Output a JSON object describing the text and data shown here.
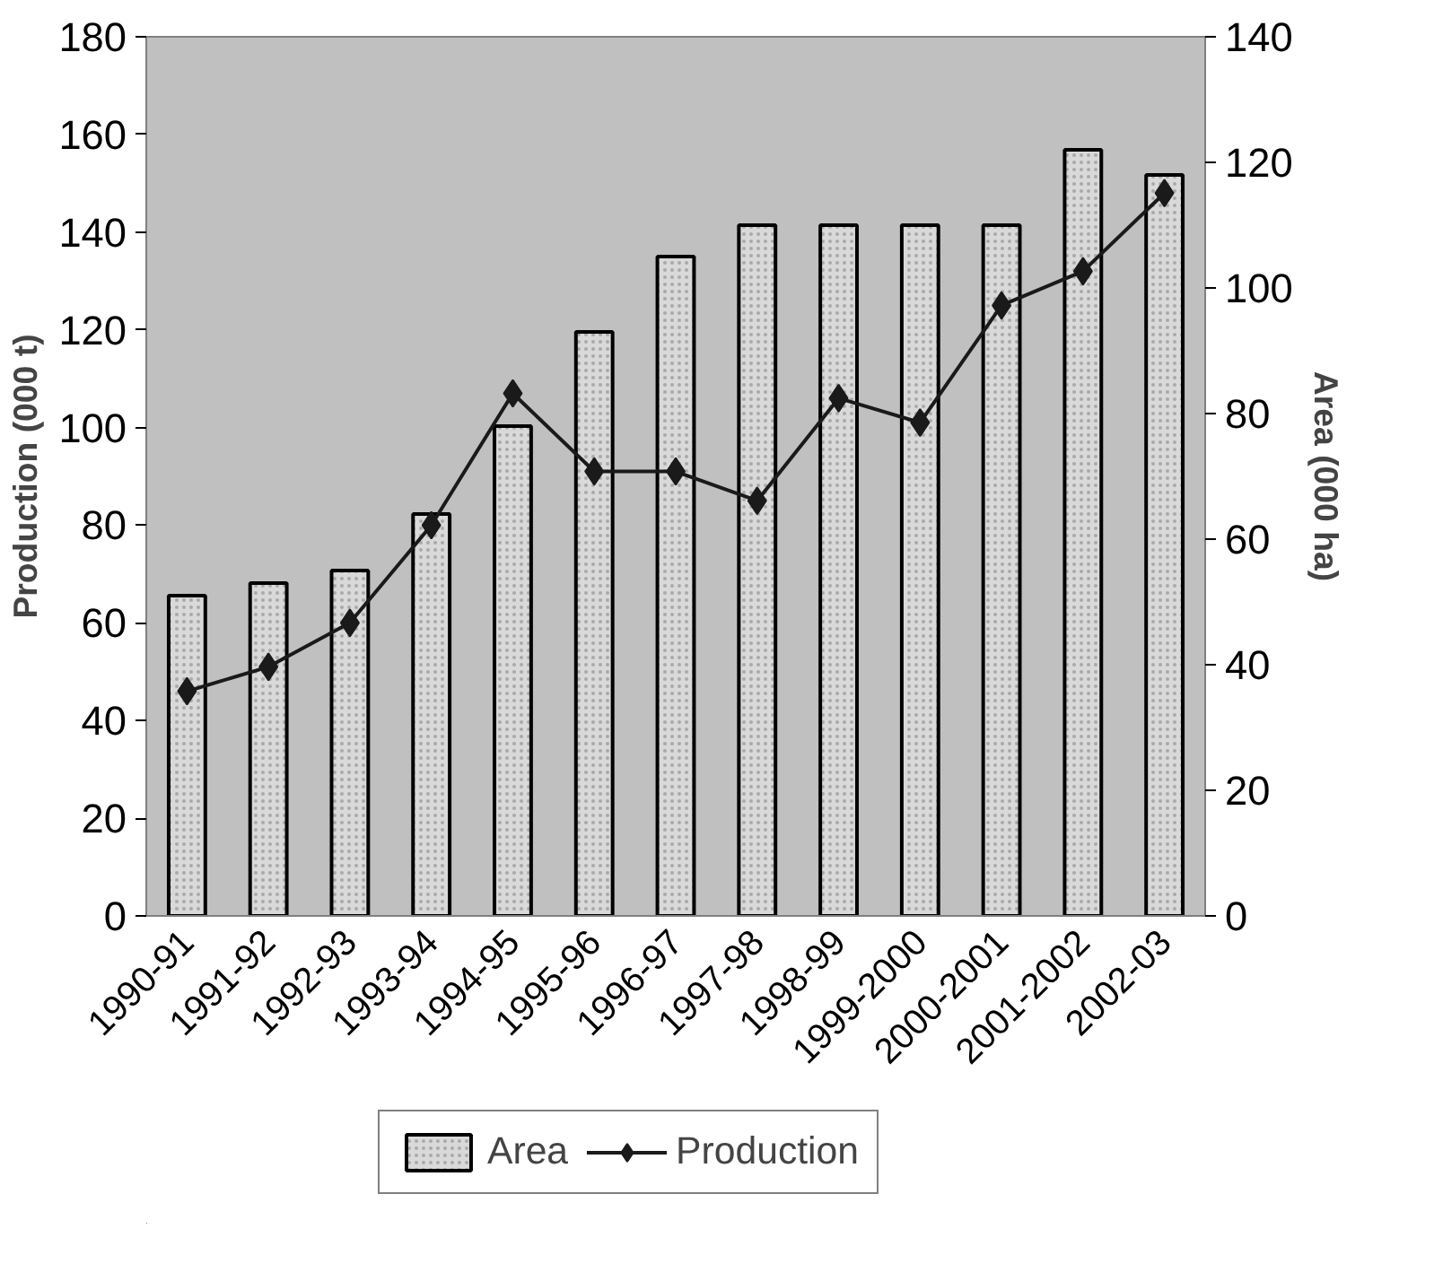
{
  "chart_data": {
    "type": "bar",
    "ylabel": "Production (000 t)",
    "y2label": "Area (000 ha)",
    "categories": [
      "1990-91",
      "1991-92",
      "1992-93",
      "1993-94",
      "1994-95",
      "1995-96",
      "1996-97",
      "1997-98",
      "1998-99",
      "1999-2000",
      "2000-2001",
      "2001-2002",
      "2002-03"
    ],
    "series": [
      {
        "name": "Area",
        "axis": "y2",
        "color": "#d9d9d9",
        "values": [
          51,
          53,
          55,
          64,
          78,
          93,
          105,
          110,
          110,
          110,
          110,
          122,
          118
        ]
      },
      {
        "name": "Production",
        "type": "line",
        "color": "#1a1a1a",
        "marker": "diamond",
        "values": [
          46,
          51,
          60,
          80,
          107,
          91,
          91,
          85,
          106,
          101,
          125,
          132,
          148
        ]
      }
    ],
    "ylim": [
      0,
      180
    ],
    "yticks": [
      0,
      20,
      40,
      60,
      80,
      100,
      120,
      140,
      160,
      180
    ],
    "y2lim": [
      0,
      140
    ],
    "y2ticks": [
      0,
      20,
      40,
      60,
      80,
      100,
      120,
      140
    ],
    "grid": false,
    "legend": "bottom"
  }
}
